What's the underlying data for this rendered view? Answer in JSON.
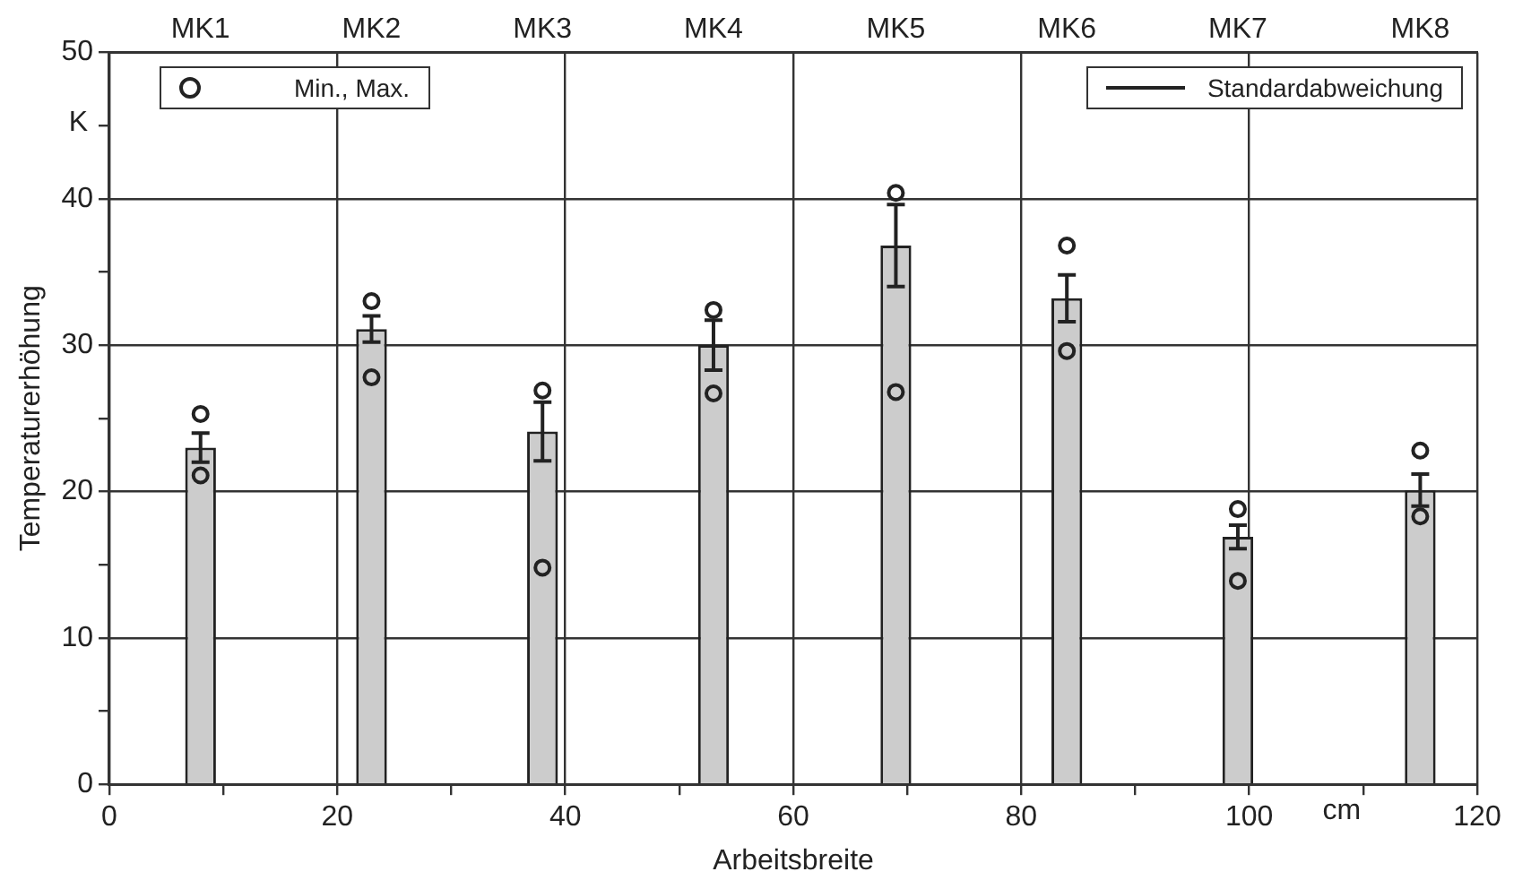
{
  "chart_data": {
    "type": "bar",
    "xlabel": "Arbeitsbreite",
    "ylabel": "Temperaturerhöhung",
    "x": [
      8,
      23,
      38,
      53,
      69,
      84,
      99,
      115
    ],
    "series": [
      {
        "color": "#cccccc",
        "values": [
          23,
          31.1,
          24.1,
          30,
          36.8,
          33.2,
          16.9,
          20.1
        ],
        "errors": [
          1,
          0.9,
          2,
          1.7,
          2.8,
          1.6,
          0.8,
          1.1
        ]
      },
      {
        "type": "scatter",
        "name": "Min., Max.",
        "color": "#222222",
        "marker": "circle",
        "x": [
          8,
          8,
          23,
          23,
          38,
          38,
          53,
          53,
          69,
          69,
          84,
          84,
          99,
          99,
          115,
          115
        ],
        "values": [
          21.1,
          25.3,
          27.8,
          33,
          14.8,
          26.9,
          26.7,
          32.4,
          26.8,
          40.4,
          29.6,
          36.8,
          13.9,
          18.8,
          18.3,
          22.8
        ]
      }
    ],
    "xlim": [
      0,
      120
    ],
    "xticks": [
      0,
      {
        "value": 10,
        "label": null
      },
      20,
      {
        "value": 30,
        "label": null
      },
      40,
      {
        "value": 50,
        "label": null
      },
      60,
      {
        "value": 70,
        "label": null
      },
      80,
      {
        "value": 90,
        "label": null
      },
      100,
      {
        "value": 110,
        "label": null
      },
      120
    ],
    "ylim": [
      0,
      50
    ],
    "yticks": [
      0,
      {
        "value": 5,
        "label": null
      },
      10,
      {
        "value": 15,
        "label": null
      },
      20,
      {
        "value": 25,
        "label": null
      },
      30,
      {
        "value": 35,
        "label": null
      },
      40,
      {
        "value": 45,
        "label": null
      },
      50
    ],
    "grid": true,
    "legend": "top",
    "annotations": [
      "Standardabweichung",
      "K",
      "cm",
      "MK1",
      "MK2",
      "MK3",
      "MK4",
      "MK5",
      "MK6",
      "MK7",
      "MK8"
    ]
  }
}
